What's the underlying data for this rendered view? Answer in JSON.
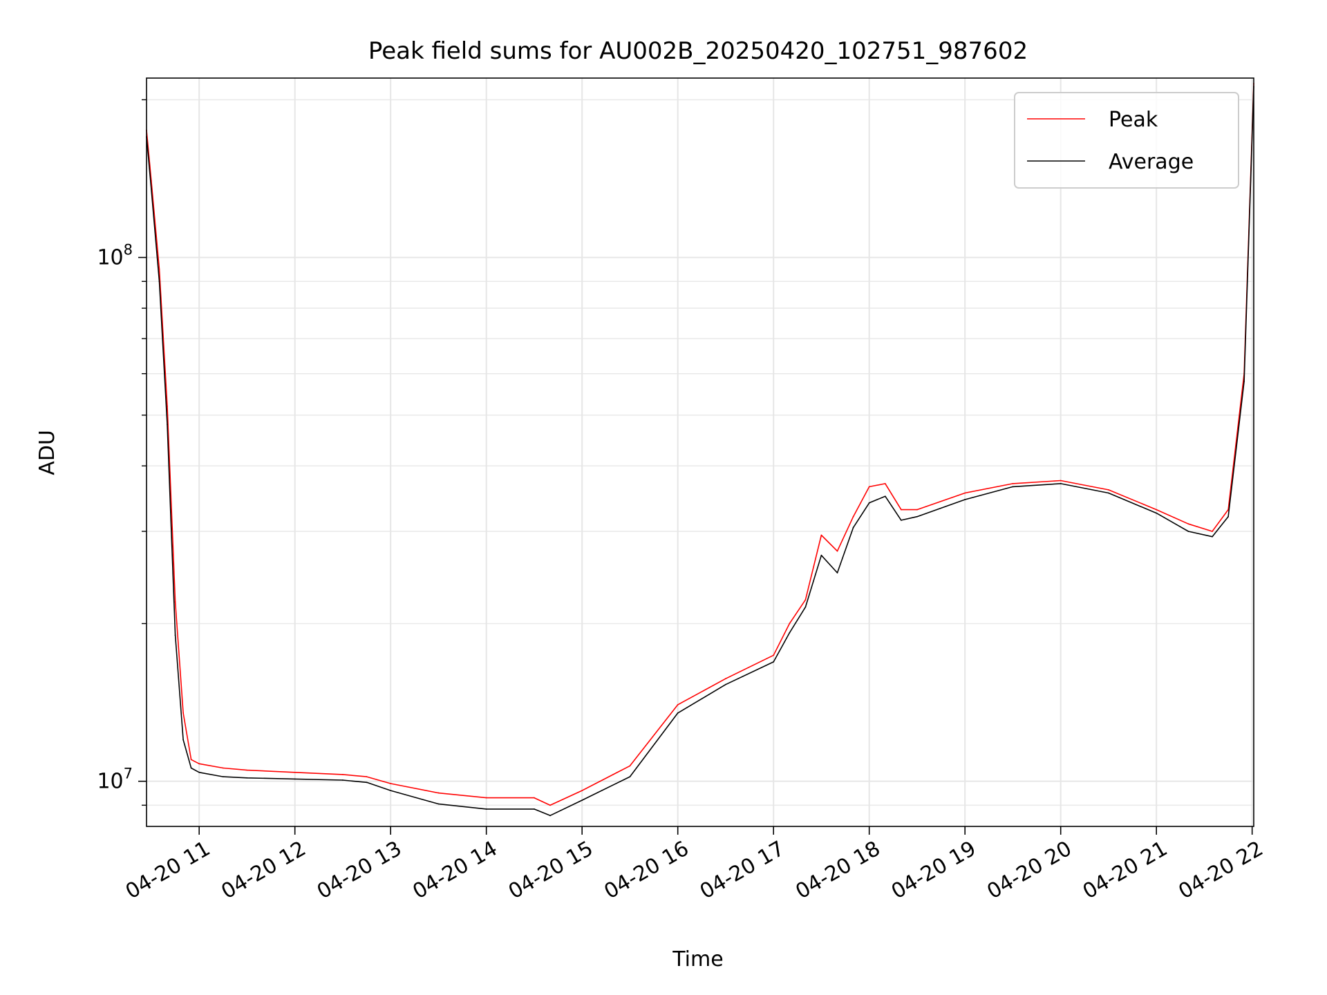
{
  "chart_data": {
    "type": "line",
    "title": "Peak field sums for AU002B_20250420_102751_987602",
    "xlabel": "Time",
    "ylabel": "ADU",
    "y_scale": "log",
    "grid": true,
    "grid_minor": true,
    "legend_position": "top-right",
    "x_range": [
      "2025-04-20 10:27",
      "2025-04-20 22:01"
    ],
    "ylim": [
      8200000,
      220000000
    ],
    "x_ticks": [
      "04-20 11",
      "04-20 12",
      "04-20 13",
      "04-20 14",
      "04-20 15",
      "04-20 16",
      "04-20 17",
      "04-20 18",
      "04-20 19",
      "04-20 20",
      "04-20 21",
      "04-20 22"
    ],
    "y_ticks": [
      {
        "value": 10000000,
        "base": "10",
        "exp": "7"
      },
      {
        "value": 100000000,
        "base": "10",
        "exp": "8"
      }
    ],
    "series": [
      {
        "name": "Peak",
        "color": "#ff0000",
        "x": [
          "2025-04-20 10:27",
          "2025-04-20 10:30",
          "2025-04-20 10:35",
          "2025-04-20 10:40",
          "2025-04-20 10:45",
          "2025-04-20 10:50",
          "2025-04-20 10:55",
          "2025-04-20 11:00",
          "2025-04-20 11:15",
          "2025-04-20 11:30",
          "2025-04-20 12:00",
          "2025-04-20 12:30",
          "2025-04-20 12:45",
          "2025-04-20 13:00",
          "2025-04-20 13:30",
          "2025-04-20 14:00",
          "2025-04-20 14:30",
          "2025-04-20 14:40",
          "2025-04-20 15:00",
          "2025-04-20 15:30",
          "2025-04-20 16:00",
          "2025-04-20 16:30",
          "2025-04-20 17:00",
          "2025-04-20 17:10",
          "2025-04-20 17:20",
          "2025-04-20 17:30",
          "2025-04-20 17:40",
          "2025-04-20 17:50",
          "2025-04-20 18:00",
          "2025-04-20 18:10",
          "2025-04-20 18:20",
          "2025-04-20 18:30",
          "2025-04-20 19:00",
          "2025-04-20 19:30",
          "2025-04-20 20:00",
          "2025-04-20 20:30",
          "2025-04-20 21:00",
          "2025-04-20 21:20",
          "2025-04-20 21:35",
          "2025-04-20 21:45",
          "2025-04-20 21:55",
          "2025-04-20 22:01"
        ],
        "values": [
          175000000,
          140000000,
          95000000,
          52000000,
          22000000,
          13500000,
          11000000,
          10800000,
          10600000,
          10500000,
          10400000,
          10300000,
          10200000,
          9900000,
          9500000,
          9300000,
          9300000,
          9000000,
          9600000,
          10700000,
          14000000,
          15700000,
          17400000,
          20000000,
          22200000,
          29500000,
          27500000,
          32000000,
          36500000,
          37000000,
          33000000,
          33000000,
          35500000,
          37000000,
          37500000,
          36000000,
          33000000,
          31000000,
          30000000,
          33000000,
          60000000,
          215000000
        ]
      },
      {
        "name": "Average",
        "color": "#000000",
        "x": [
          "2025-04-20 10:27",
          "2025-04-20 10:30",
          "2025-04-20 10:35",
          "2025-04-20 10:40",
          "2025-04-20 10:45",
          "2025-04-20 10:50",
          "2025-04-20 10:55",
          "2025-04-20 11:00",
          "2025-04-20 11:15",
          "2025-04-20 11:30",
          "2025-04-20 12:00",
          "2025-04-20 12:30",
          "2025-04-20 12:45",
          "2025-04-20 13:00",
          "2025-04-20 13:30",
          "2025-04-20 14:00",
          "2025-04-20 14:30",
          "2025-04-20 14:40",
          "2025-04-20 15:00",
          "2025-04-20 15:30",
          "2025-04-20 16:00",
          "2025-04-20 16:30",
          "2025-04-20 17:00",
          "2025-04-20 17:10",
          "2025-04-20 17:20",
          "2025-04-20 17:30",
          "2025-04-20 17:40",
          "2025-04-20 17:50",
          "2025-04-20 18:00",
          "2025-04-20 18:10",
          "2025-04-20 18:20",
          "2025-04-20 18:30",
          "2025-04-20 19:00",
          "2025-04-20 19:30",
          "2025-04-20 20:00",
          "2025-04-20 20:30",
          "2025-04-20 21:00",
          "2025-04-20 21:20",
          "2025-04-20 21:35",
          "2025-04-20 21:45",
          "2025-04-20 21:55",
          "2025-04-20 22:01"
        ],
        "values": [
          170000000,
          135000000,
          90000000,
          48000000,
          19000000,
          12000000,
          10600000,
          10400000,
          10200000,
          10150000,
          10100000,
          10050000,
          9950000,
          9600000,
          9050000,
          8850000,
          8850000,
          8600000,
          9200000,
          10200000,
          13500000,
          15300000,
          16900000,
          19200000,
          21500000,
          27000000,
          25000000,
          30500000,
          34000000,
          35000000,
          31500000,
          32000000,
          34500000,
          36500000,
          37000000,
          35500000,
          32500000,
          30000000,
          29300000,
          32000000,
          58000000,
          212000000
        ]
      }
    ]
  }
}
